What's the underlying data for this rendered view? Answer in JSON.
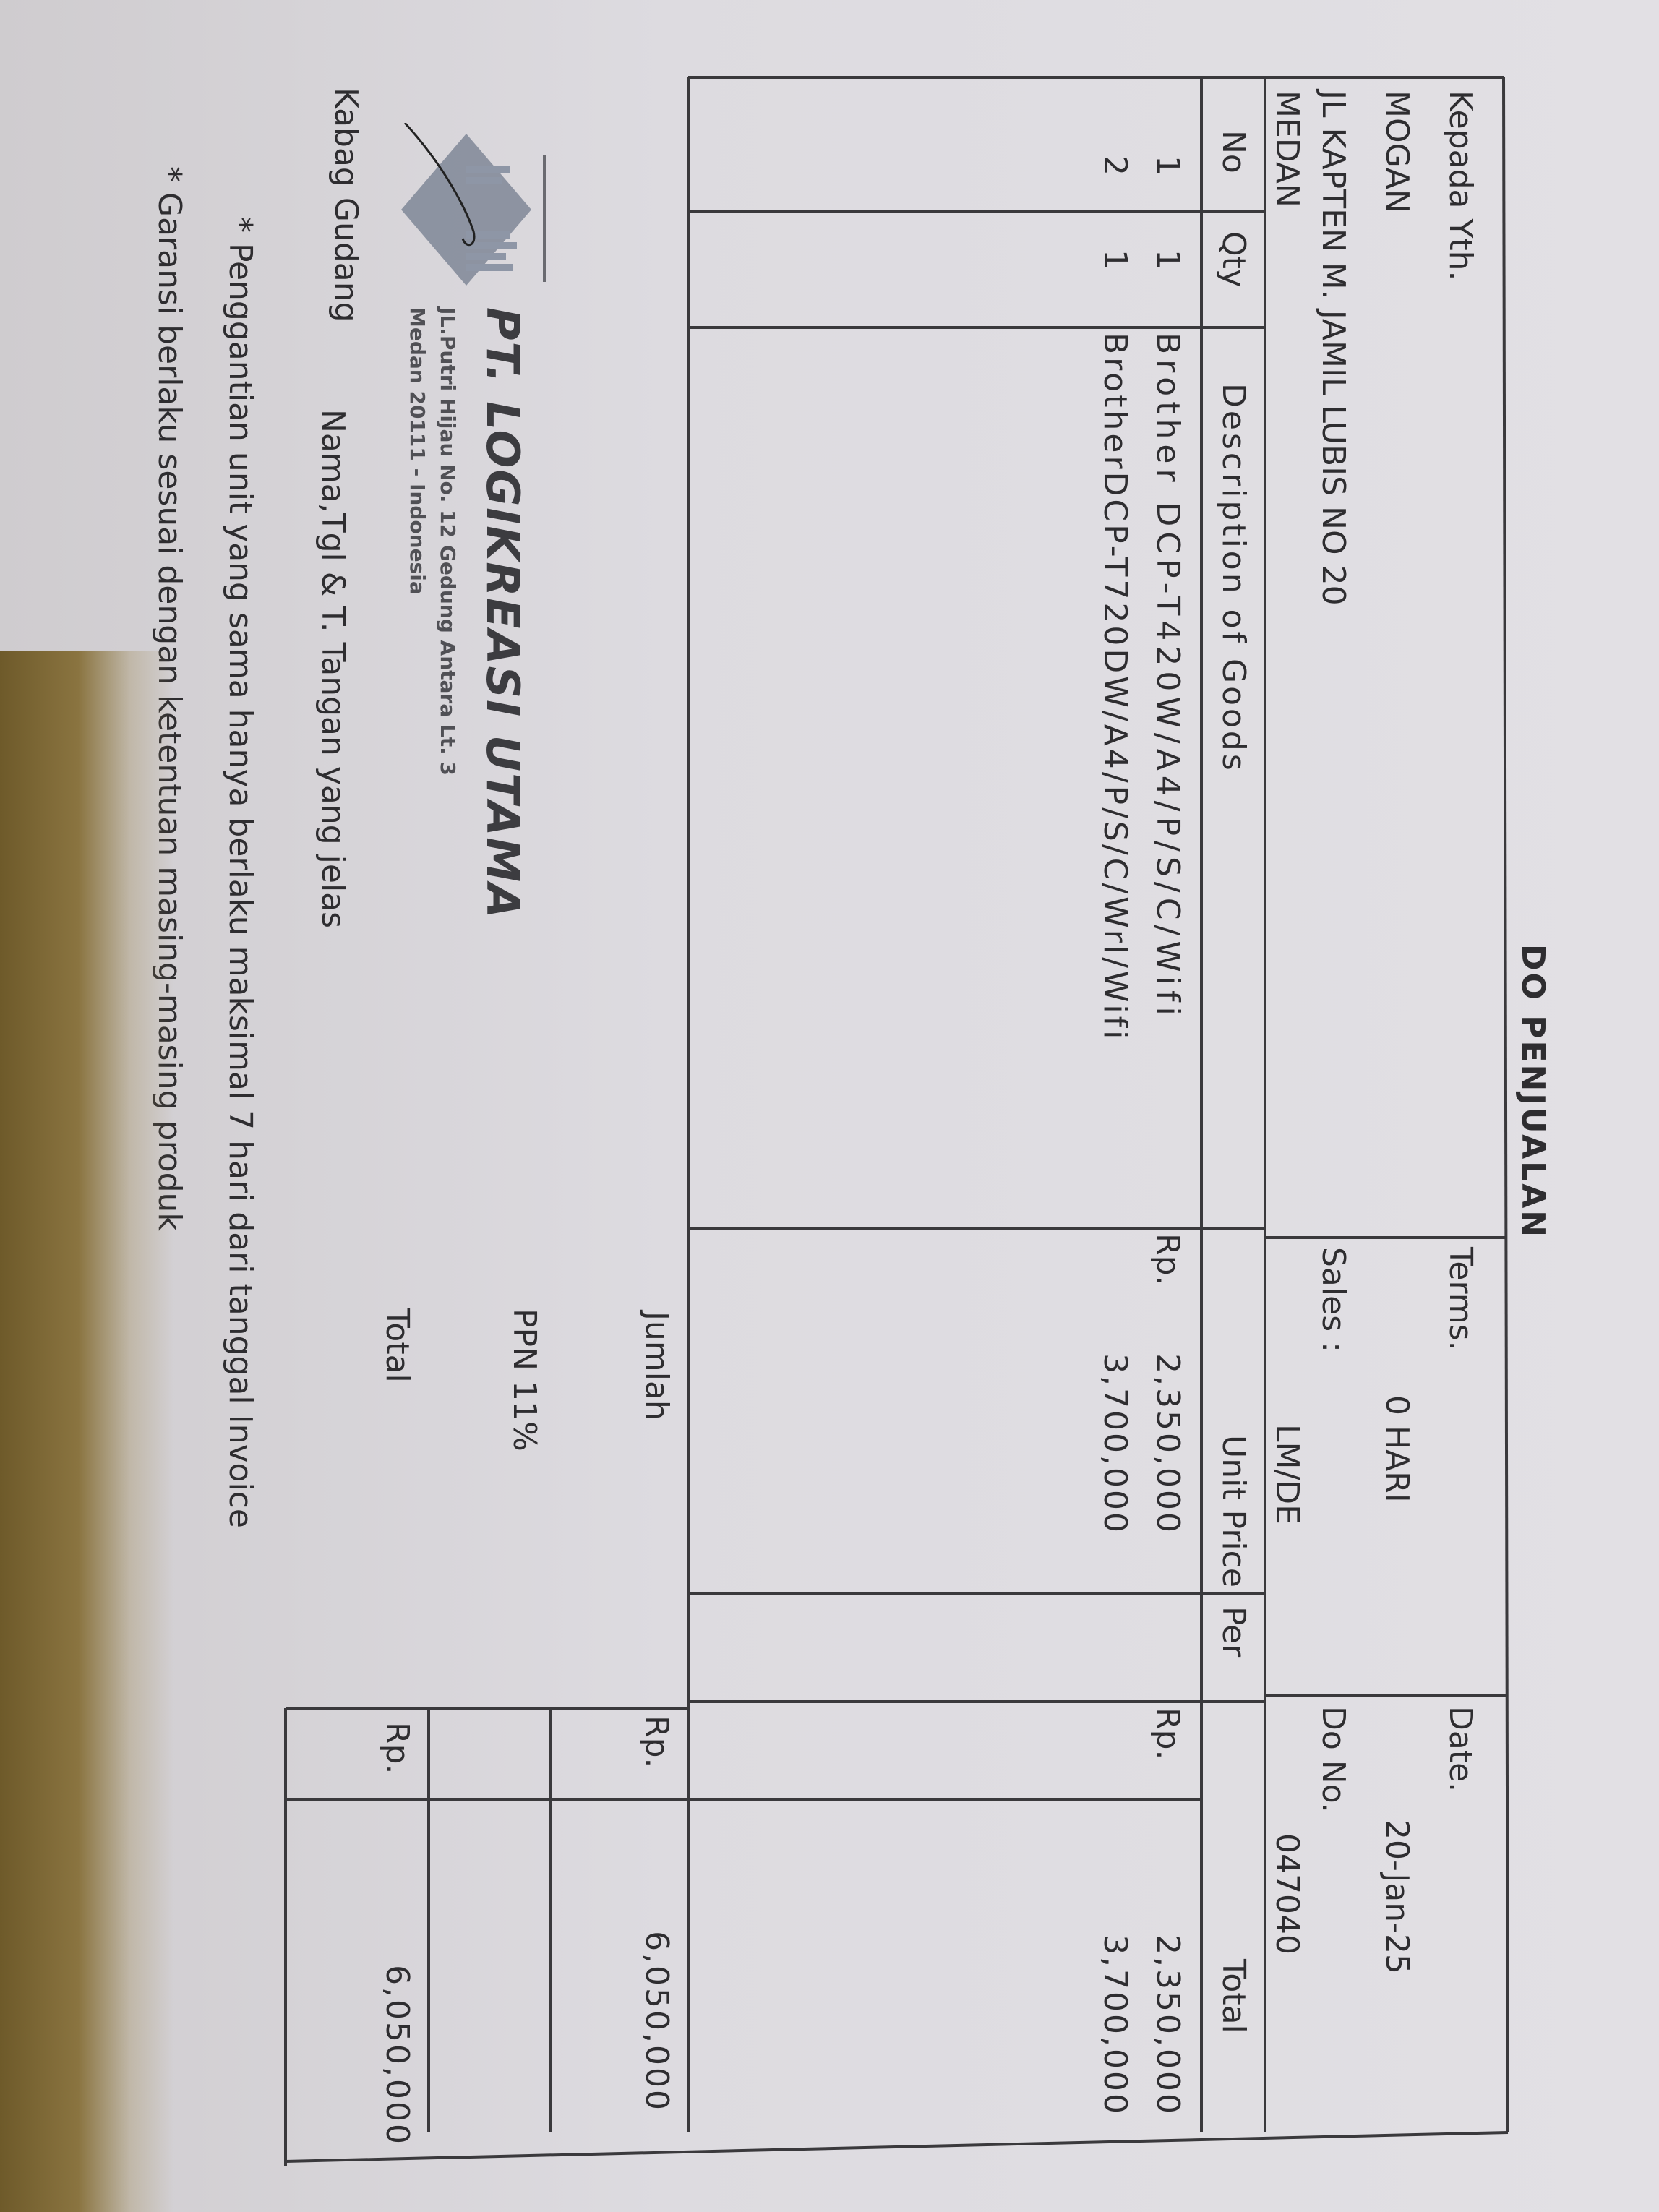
{
  "document": {
    "title": "DO PENJUALAN",
    "recipient": {
      "label": "Kepada Yth.",
      "name": "MOGAN",
      "address": "JL KAPTEN M. JAMIL LUBIS NO 20",
      "city": "MEDAN"
    },
    "meta": {
      "terms_label": "Terms.",
      "terms_value": "0 HARI",
      "sales_label": "Sales :",
      "sales_value": "LM/DE",
      "date_label": "Date.",
      "date_value": "20-Jan-25",
      "do_no_label": "Do No.",
      "do_no_value": "047040"
    },
    "columns": [
      "No",
      "Qty",
      "Description of Goods",
      "Unit Price",
      "Per",
      "Total"
    ],
    "items": [
      {
        "no": "1",
        "qty": "1",
        "description": "Brother DCP-T420W/A4/P/S/C/Wifi",
        "currency": "Rp.",
        "unit_price": "2,350,000",
        "per": "",
        "total_currency": "Rp.",
        "total": "2,350,000"
      },
      {
        "no": "2",
        "qty": "1",
        "description": "BrotherDCP-T720DW/A4/P/S/C/Wrl/Wifi",
        "currency": "",
        "unit_price": "3,700,000",
        "per": "",
        "total_currency": "",
        "total": "3,700,000"
      }
    ],
    "summary": {
      "subtotal_label": "Jumlah",
      "subtotal_currency": "Rp.",
      "subtotal_value": "6,050,000",
      "tax_label": "PPN 11%",
      "tax_value": "",
      "total_label": "Total",
      "total_currency": "Rp.",
      "total_value": "6,050,000"
    },
    "stamp": {
      "company": "PT. LOGIKREASI UTAMA",
      "address_line1": "JL.Putri Hijau No. 12 Gedung Antara Lt. 3",
      "address_line2": "Medan 20111 - Indonesia",
      "logo_color": "#7f8797"
    },
    "signature": {
      "role": "Kabag Gudang",
      "instruction": "Nama,Tgl & T. Tangan yang jelas"
    },
    "notes": [
      "* Penggantian unit yang sama hanya berlaku maksimal 7 hari dari tanggal Invoice",
      "* Garansi berlaku sesuai dengan ketentuan masing-masing produk"
    ]
  }
}
